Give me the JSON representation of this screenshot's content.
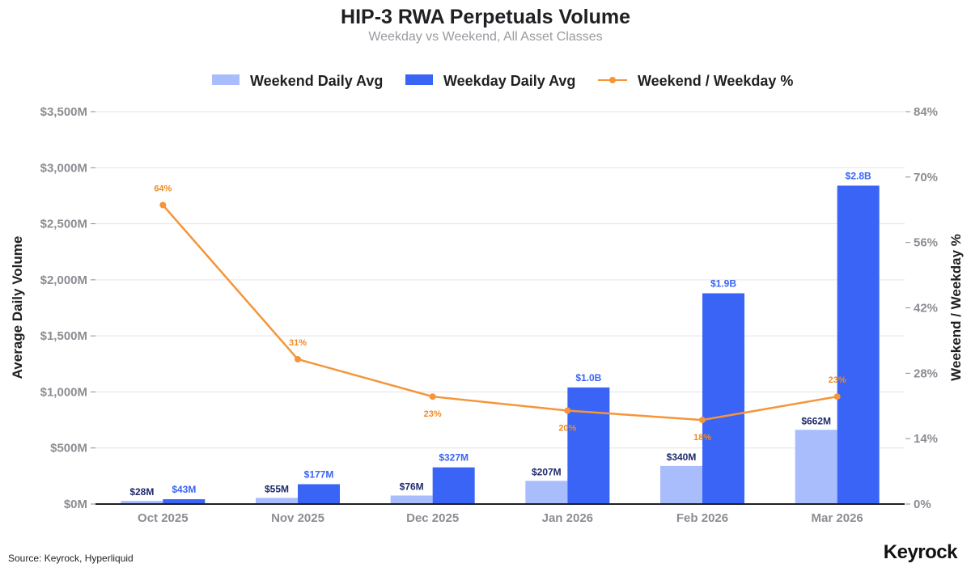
{
  "header": {
    "title": "HIP-3 RWA Perpetuals Volume",
    "subtitle": "Weekday vs Weekend, All Asset Classes"
  },
  "footer": {
    "source": "Source: Keyrock, Hyperliquid",
    "brand": "Keyrock"
  },
  "colors": {
    "weekend": "#a9bdfc",
    "weekday": "#3964f5",
    "ratio": "#f5953a",
    "grid": "#e3e3e6",
    "baseline": "#1f2023"
  },
  "chart_data": {
    "type": "bar",
    "title": "HIP-3 RWA Perpetuals Volume",
    "subtitle": "Weekday vs Weekend, All Asset Classes",
    "categories": [
      "Oct 2025",
      "Nov 2025",
      "Dec 2025",
      "Jan 2026",
      "Feb 2026",
      "Mar 2026"
    ],
    "series": [
      {
        "name": "Weekend Daily Avg",
        "kind": "bar",
        "axis": "left",
        "values": [
          28,
          55,
          76,
          207,
          340,
          662
        ],
        "labels": [
          "$28M",
          "$55M",
          "$76M",
          "$207M",
          "$340M",
          "$662M"
        ]
      },
      {
        "name": "Weekday Daily Avg",
        "kind": "bar",
        "axis": "left",
        "values": [
          43,
          177,
          327,
          1040,
          1880,
          2840
        ],
        "labels": [
          "$43M",
          "$177M",
          "$327M",
          "$1.0B",
          "$1.9B",
          "$2.8B"
        ]
      },
      {
        "name": "Weekend / Weekday %",
        "kind": "line",
        "axis": "right",
        "values": [
          64,
          31,
          23,
          20,
          18,
          23
        ],
        "labels": [
          "64%",
          "31%",
          "23%",
          "20%",
          "18%",
          "23%"
        ]
      }
    ],
    "ylabel": "Average Daily Volume",
    "ylabel_right": "Weekend / Weekday %",
    "xlabel": "",
    "ylim": [
      0,
      3500
    ],
    "ylim_right": [
      0,
      84
    ],
    "yticks": [
      0,
      500,
      1000,
      1500,
      2000,
      2500,
      3000,
      3500
    ],
    "ytick_labels": [
      "$0M",
      "$500M",
      "$1,000M",
      "$1,500M",
      "$2,000M",
      "$2,500M",
      "$3,000M",
      "$3,500M"
    ],
    "yticks_right": [
      0,
      14,
      28,
      42,
      56,
      70,
      84
    ],
    "ytick_labels_right": [
      "0%",
      "14%",
      "28%",
      "42%",
      "56%",
      "70%",
      "84%"
    ],
    "grid": true,
    "legend_position": "top-center"
  }
}
